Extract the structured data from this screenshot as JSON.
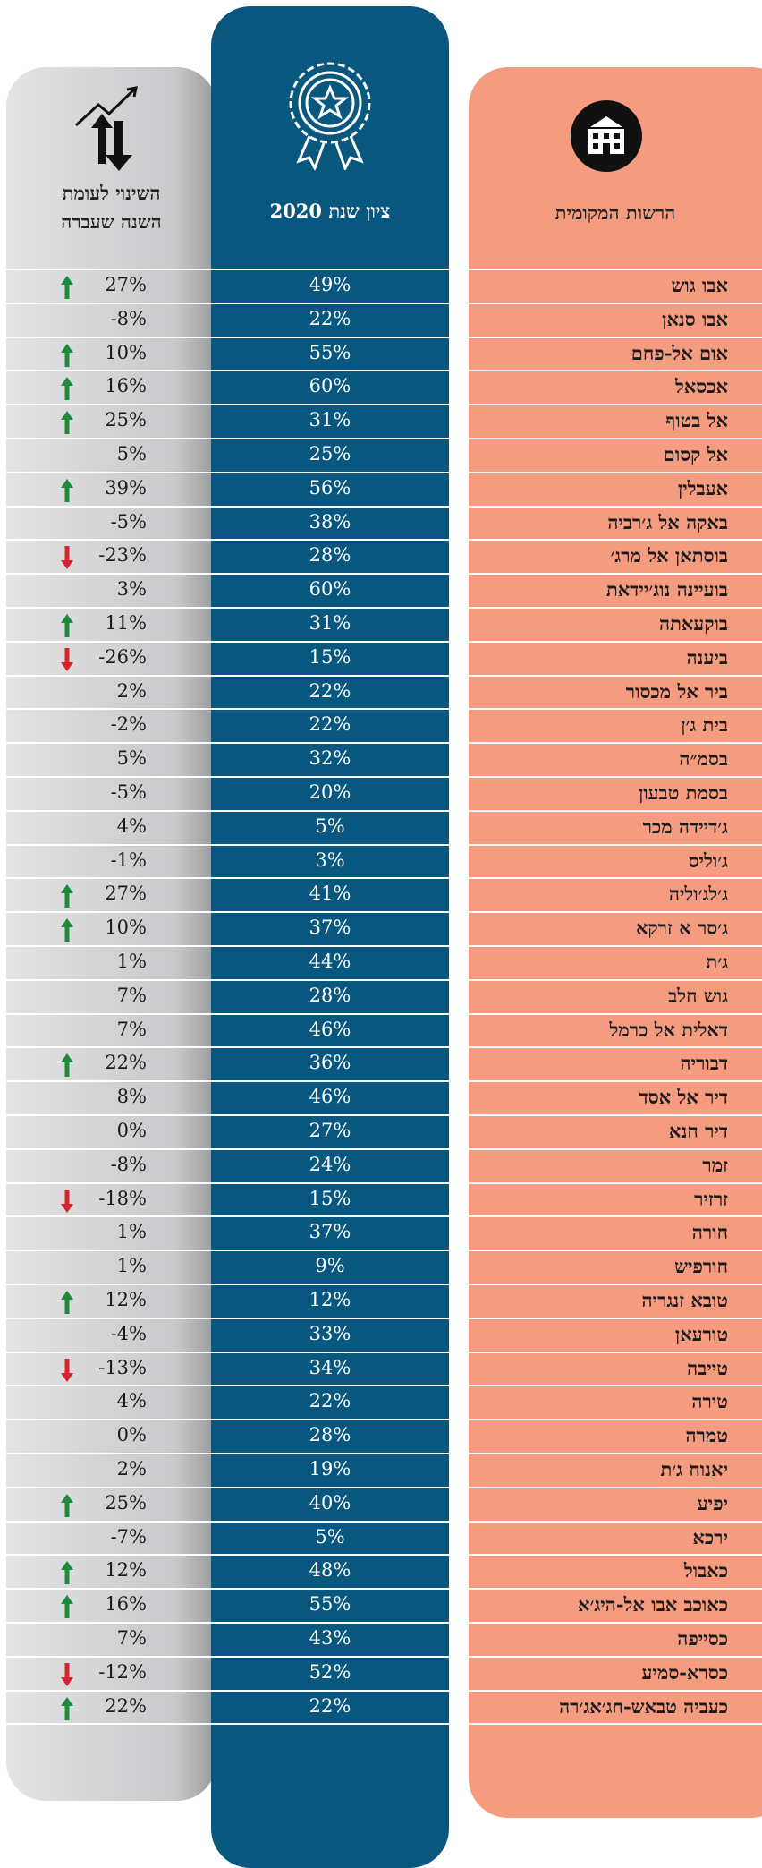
{
  "header": {
    "name": "הרשות המקומית",
    "score": "ציון שנת 2020",
    "change": [
      "השינוי לעומת",
      "השנה שעברה"
    ]
  },
  "rows": [
    {
      "name": "אבו גוש",
      "score": "49%",
      "change": "27%",
      "trend": "up"
    },
    {
      "name": "אבו סנאן",
      "score": "22%",
      "change": "-8%",
      "trend": null
    },
    {
      "name": "אום אל-פחם",
      "score": "55%",
      "change": "10%",
      "trend": "up"
    },
    {
      "name": "אכסאל",
      "score": "60%",
      "change": "16%",
      "trend": "up"
    },
    {
      "name": "אל בטוף",
      "score": "31%",
      "change": "25%",
      "trend": "up"
    },
    {
      "name": "אל קסום",
      "score": "25%",
      "change": "5%",
      "trend": null
    },
    {
      "name": "אעבלין",
      "score": "56%",
      "change": "39%",
      "trend": "up"
    },
    {
      "name": "באקה אל ג׳רביה",
      "score": "38%",
      "change": "-5%",
      "trend": null
    },
    {
      "name": "בוסתאן אל מרג׳",
      "score": "28%",
      "change": "-23%",
      "trend": "down"
    },
    {
      "name": "בועיינה נוג׳יידאת",
      "score": "60%",
      "change": "3%",
      "trend": null
    },
    {
      "name": "בוקעאתה",
      "score": "31%",
      "change": "11%",
      "trend": "up"
    },
    {
      "name": "ביענה",
      "score": "15%",
      "change": "-26%",
      "trend": "down"
    },
    {
      "name": "ביר אל מכסור",
      "score": "22%",
      "change": "2%",
      "trend": null
    },
    {
      "name": "בית ג׳ן",
      "score": "22%",
      "change": "-2%",
      "trend": null
    },
    {
      "name": "בסמ״ה",
      "score": "32%",
      "change": "5%",
      "trend": null
    },
    {
      "name": "בסמת טבעון",
      "score": "20%",
      "change": "-5%",
      "trend": null
    },
    {
      "name": "ג׳דיידה מכר",
      "score": "5%",
      "change": "4%",
      "trend": null
    },
    {
      "name": "ג׳וליס",
      "score": "3%",
      "change": "-1%",
      "trend": null
    },
    {
      "name": "ג׳לג׳וליה",
      "score": "41%",
      "change": "27%",
      "trend": "up"
    },
    {
      "name": "ג׳סר א זרקא",
      "score": "37%",
      "change": "10%",
      "trend": "up"
    },
    {
      "name": "ג׳ת",
      "score": "44%",
      "change": "1%",
      "trend": null
    },
    {
      "name": "גוש חלב",
      "score": "28%",
      "change": "7%",
      "trend": null
    },
    {
      "name": "דאלית אל כרמל",
      "score": "46%",
      "change": "7%",
      "trend": null
    },
    {
      "name": "דבוריה",
      "score": "36%",
      "change": "22%",
      "trend": "up"
    },
    {
      "name": "דיר אל אסד",
      "score": "46%",
      "change": "8%",
      "trend": null
    },
    {
      "name": "דיר חנא",
      "score": "27%",
      "change": "0%",
      "trend": null
    },
    {
      "name": "זמר",
      "score": "24%",
      "change": "-8%",
      "trend": null
    },
    {
      "name": "זרזיר",
      "score": "15%",
      "change": "-18%",
      "trend": "down"
    },
    {
      "name": "חורה",
      "score": "37%",
      "change": "1%",
      "trend": null
    },
    {
      "name": "חורפיש",
      "score": "9%",
      "change": "1%",
      "trend": null
    },
    {
      "name": "טובא זנגריה",
      "score": "12%",
      "change": "12%",
      "trend": "up"
    },
    {
      "name": "טורעאן",
      "score": "33%",
      "change": "-4%",
      "trend": null
    },
    {
      "name": "טייבה",
      "score": "34%",
      "change": "-13%",
      "trend": "down"
    },
    {
      "name": "טירה",
      "score": "22%",
      "change": "4%",
      "trend": null
    },
    {
      "name": "טמרה",
      "score": "28%",
      "change": "0%",
      "trend": null
    },
    {
      "name": "יאנוח ג׳ת",
      "score": "19%",
      "change": "2%",
      "trend": null
    },
    {
      "name": "יפיע",
      "score": "40%",
      "change": "25%",
      "trend": "up"
    },
    {
      "name": "ירכא",
      "score": "5%",
      "change": "-7%",
      "trend": null
    },
    {
      "name": "כאבול",
      "score": "48%",
      "change": "12%",
      "trend": "up"
    },
    {
      "name": "כאוכב אבו אל-היג׳א",
      "score": "55%",
      "change": "16%",
      "trend": "up"
    },
    {
      "name": "כסייפה",
      "score": "43%",
      "change": "7%",
      "trend": null
    },
    {
      "name": "כסרא-סמיע",
      "score": "52%",
      "change": "-12%",
      "trend": "down"
    },
    {
      "name": "כעביה טבאש-חג׳אג׳רה",
      "score": "22%",
      "change": "22%",
      "trend": "up"
    }
  ]
}
